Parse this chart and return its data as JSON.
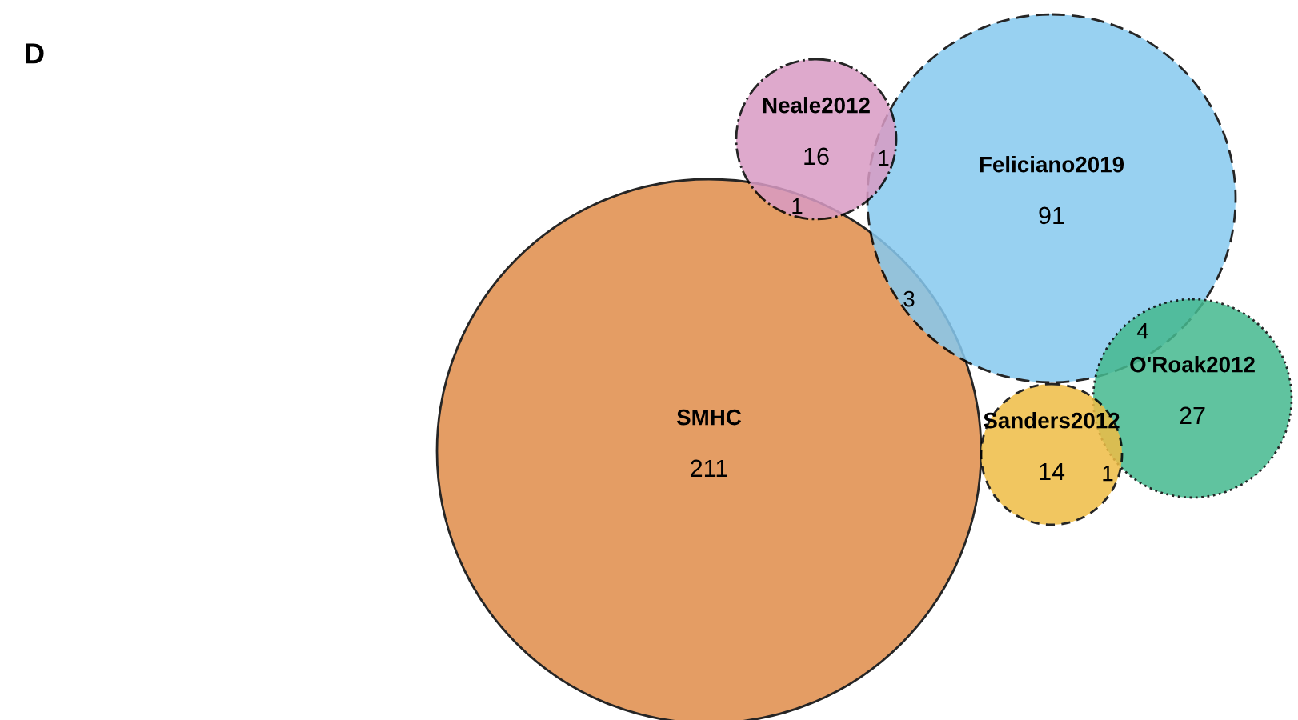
{
  "chart_data": {
    "type": "other",
    "title": "D",
    "categories": [
      "SMHC",
      "Feliciano2019",
      "Neale2012",
      "O'Roak2012",
      "Sanders2012"
    ],
    "values": [
      211,
      91,
      16,
      27,
      14
    ],
    "colors": [
      "#e08c4a",
      "#87c9ef",
      "#d99bc4",
      "#45b98f",
      "#efbd45"
    ],
    "data_labels": true,
    "annotations": [
      "1",
      "1",
      "3",
      "4",
      "1"
    ]
  }
}
